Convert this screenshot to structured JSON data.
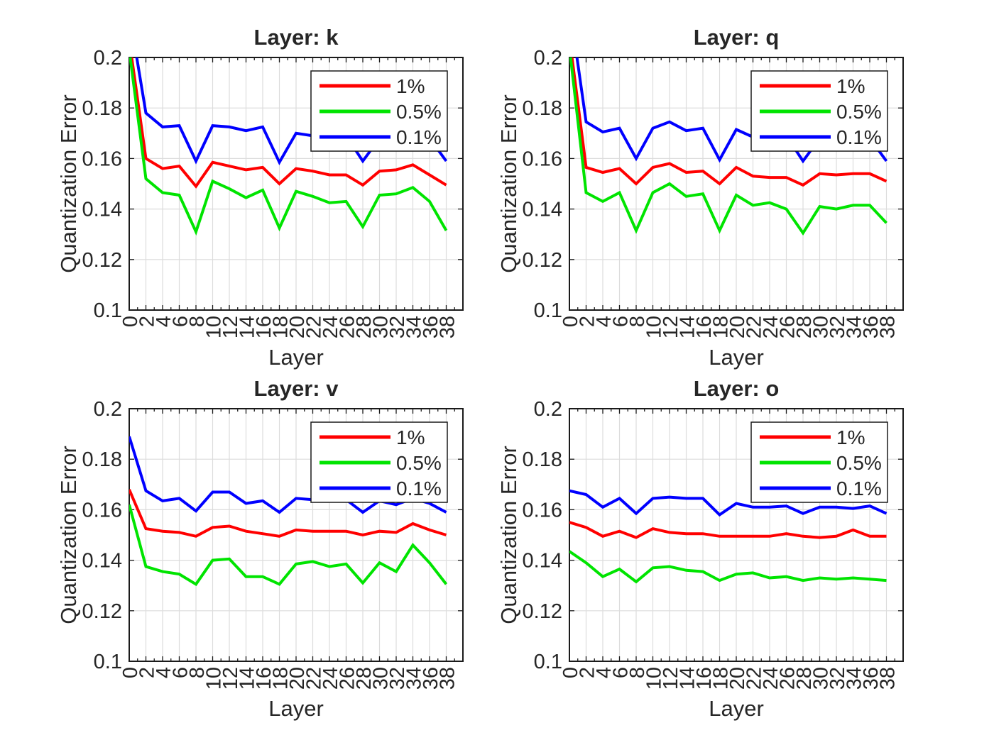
{
  "figure": {
    "background": "#ffffff",
    "text_color": "#262626",
    "axis_color": "#1a1a1a",
    "grid_color": "#dcdcdc",
    "legend": {
      "position": "northeast",
      "labels": [
        "1%",
        "0.5%",
        "0.1%"
      ],
      "colors": [
        "#ff0000",
        "#00e400",
        "#0000ff"
      ]
    }
  },
  "chart_data": [
    {
      "id": "k",
      "type": "line",
      "title": "Layer: k",
      "xlabel": "Layer",
      "ylabel": "Quantization Error",
      "grid": true,
      "legend_position": "northeast",
      "xlim": [
        0,
        40
      ],
      "ylim": [
        0.1,
        0.2
      ],
      "xticks": [
        0,
        2,
        4,
        6,
        8,
        10,
        12,
        14,
        16,
        18,
        20,
        22,
        24,
        26,
        28,
        30,
        32,
        34,
        36,
        38
      ],
      "xtick_labels": [
        "0",
        "2",
        "4",
        "6",
        "8",
        "10",
        "12",
        "14",
        "16",
        "18",
        "20",
        "22",
        "24",
        "26",
        "28",
        "30",
        "32",
        "34",
        "36",
        "38"
      ],
      "yticks": [
        0.1,
        0.12,
        0.14,
        0.16,
        0.18,
        0.2
      ],
      "ytick_labels": [
        "0.1",
        "0.12",
        "0.14",
        "0.16",
        "0.18",
        "0.2"
      ],
      "x": [
        0,
        2,
        4,
        6,
        8,
        10,
        12,
        14,
        16,
        18,
        20,
        22,
        24,
        26,
        28,
        30,
        32,
        34,
        36,
        38
      ],
      "series": [
        {
          "name": "1%",
          "color": "#ff0000",
          "values": [
            0.207,
            0.16,
            0.156,
            0.157,
            0.149,
            0.1585,
            0.157,
            0.1555,
            0.1565,
            0.15,
            0.156,
            0.155,
            0.1535,
            0.1535,
            0.1495,
            0.155,
            0.1555,
            0.1575,
            0.1535,
            0.1495
          ]
        },
        {
          "name": "0.5%",
          "color": "#00e400",
          "values": [
            0.203,
            0.152,
            0.1465,
            0.1455,
            0.131,
            0.151,
            0.148,
            0.1445,
            0.1475,
            0.1325,
            0.147,
            0.145,
            0.1425,
            0.143,
            0.133,
            0.1455,
            0.146,
            0.1485,
            0.143,
            0.1315
          ]
        },
        {
          "name": "0.1%",
          "color": "#0000ff",
          "values": [
            0.218,
            0.178,
            0.1725,
            0.173,
            0.159,
            0.173,
            0.1725,
            0.171,
            0.1725,
            0.1585,
            0.17,
            0.169,
            0.1685,
            0.169,
            0.159,
            0.168,
            0.1695,
            0.17,
            0.168,
            0.159
          ]
        }
      ]
    },
    {
      "id": "q",
      "type": "line",
      "title": "Layer: q",
      "xlabel": "Layer",
      "ylabel": "Quantization Error",
      "grid": true,
      "legend_position": "northeast",
      "xlim": [
        0,
        40
      ],
      "ylim": [
        0.1,
        0.2
      ],
      "xticks": [
        0,
        2,
        4,
        6,
        8,
        10,
        12,
        14,
        16,
        18,
        20,
        22,
        24,
        26,
        28,
        30,
        32,
        34,
        36,
        38
      ],
      "xtick_labels": [
        "0",
        "2",
        "4",
        "6",
        "8",
        "10",
        "12",
        "14",
        "16",
        "18",
        "20",
        "22",
        "24",
        "26",
        "28",
        "30",
        "32",
        "34",
        "36",
        "38"
      ],
      "yticks": [
        0.1,
        0.12,
        0.14,
        0.16,
        0.18,
        0.2
      ],
      "ytick_labels": [
        "0.1",
        "0.12",
        "0.14",
        "0.16",
        "0.18",
        "0.2"
      ],
      "x": [
        0,
        2,
        4,
        6,
        8,
        10,
        12,
        14,
        16,
        18,
        20,
        22,
        24,
        26,
        28,
        30,
        32,
        34,
        36,
        38
      ],
      "series": [
        {
          "name": "1%",
          "color": "#ff0000",
          "values": [
            0.208,
            0.1565,
            0.1545,
            0.156,
            0.15,
            0.1565,
            0.158,
            0.1545,
            0.155,
            0.15,
            0.1565,
            0.153,
            0.1525,
            0.1525,
            0.1495,
            0.154,
            0.1535,
            0.154,
            0.154,
            0.151
          ]
        },
        {
          "name": "0.5%",
          "color": "#00e400",
          "values": [
            0.204,
            0.1465,
            0.143,
            0.1465,
            0.1315,
            0.1465,
            0.15,
            0.145,
            0.146,
            0.1315,
            0.1455,
            0.1415,
            0.1425,
            0.14,
            0.1305,
            0.141,
            0.14,
            0.1415,
            0.1415,
            0.1345
          ]
        },
        {
          "name": "0.1%",
          "color": "#0000ff",
          "values": [
            0.221,
            0.1745,
            0.1705,
            0.172,
            0.16,
            0.172,
            0.1745,
            0.171,
            0.172,
            0.1595,
            0.1715,
            0.1685,
            0.168,
            0.169,
            0.159,
            0.168,
            0.169,
            0.1695,
            0.168,
            0.159
          ]
        }
      ]
    },
    {
      "id": "v",
      "type": "line",
      "title": "Layer: v",
      "xlabel": "Layer",
      "ylabel": "Quantization Error",
      "grid": true,
      "legend_position": "northeast",
      "xlim": [
        0,
        40
      ],
      "ylim": [
        0.1,
        0.2
      ],
      "xticks": [
        0,
        2,
        4,
        6,
        8,
        10,
        12,
        14,
        16,
        18,
        20,
        22,
        24,
        26,
        28,
        30,
        32,
        34,
        36,
        38
      ],
      "xtick_labels": [
        "0",
        "2",
        "4",
        "6",
        "8",
        "10",
        "12",
        "14",
        "16",
        "18",
        "20",
        "22",
        "24",
        "26",
        "28",
        "30",
        "32",
        "34",
        "36",
        "38"
      ],
      "yticks": [
        0.1,
        0.12,
        0.14,
        0.16,
        0.18,
        0.2
      ],
      "ytick_labels": [
        "0.1",
        "0.12",
        "0.14",
        "0.16",
        "0.18",
        "0.2"
      ],
      "x": [
        0,
        2,
        4,
        6,
        8,
        10,
        12,
        14,
        16,
        18,
        20,
        22,
        24,
        26,
        28,
        30,
        32,
        34,
        36,
        38
      ],
      "series": [
        {
          "name": "1%",
          "color": "#ff0000",
          "values": [
            0.168,
            0.1525,
            0.1515,
            0.151,
            0.1495,
            0.153,
            0.1535,
            0.1515,
            0.1505,
            0.1495,
            0.152,
            0.1515,
            0.1515,
            0.1515,
            0.15,
            0.1515,
            0.151,
            0.1545,
            0.152,
            0.15
          ]
        },
        {
          "name": "0.5%",
          "color": "#00e400",
          "values": [
            0.162,
            0.1375,
            0.1355,
            0.1345,
            0.1305,
            0.14,
            0.1405,
            0.1335,
            0.1335,
            0.1305,
            0.1385,
            0.1395,
            0.1375,
            0.1385,
            0.131,
            0.139,
            0.1355,
            0.146,
            0.139,
            0.1305
          ]
        },
        {
          "name": "0.1%",
          "color": "#0000ff",
          "values": [
            0.189,
            0.1675,
            0.1635,
            0.1645,
            0.1595,
            0.167,
            0.167,
            0.1625,
            0.1635,
            0.159,
            0.1645,
            0.164,
            0.1635,
            0.164,
            0.159,
            0.1635,
            0.162,
            0.1645,
            0.1625,
            0.159
          ]
        }
      ]
    },
    {
      "id": "o",
      "type": "line",
      "title": "Layer: o",
      "xlabel": "Layer",
      "ylabel": "Quantization Error",
      "grid": true,
      "legend_position": "northeast",
      "xlim": [
        0,
        40
      ],
      "ylim": [
        0.1,
        0.2
      ],
      "xticks": [
        0,
        2,
        4,
        6,
        8,
        10,
        12,
        14,
        16,
        18,
        20,
        22,
        24,
        26,
        28,
        30,
        32,
        34,
        36,
        38
      ],
      "xtick_labels": [
        "0",
        "2",
        "4",
        "6",
        "8",
        "10",
        "12",
        "14",
        "16",
        "18",
        "20",
        "22",
        "24",
        "26",
        "28",
        "30",
        "32",
        "34",
        "36",
        "38"
      ],
      "yticks": [
        0.1,
        0.12,
        0.14,
        0.16,
        0.18,
        0.2
      ],
      "ytick_labels": [
        "0.1",
        "0.12",
        "0.14",
        "0.16",
        "0.18",
        "0.2"
      ],
      "x": [
        0,
        2,
        4,
        6,
        8,
        10,
        12,
        14,
        16,
        18,
        20,
        22,
        24,
        26,
        28,
        30,
        32,
        34,
        36,
        38
      ],
      "series": [
        {
          "name": "1%",
          "color": "#ff0000",
          "values": [
            0.155,
            0.153,
            0.1495,
            0.1515,
            0.149,
            0.1525,
            0.151,
            0.1505,
            0.1505,
            0.1495,
            0.1495,
            0.1495,
            0.1495,
            0.1505,
            0.1495,
            0.149,
            0.1495,
            0.152,
            0.1495,
            0.1495
          ]
        },
        {
          "name": "0.5%",
          "color": "#00e400",
          "values": [
            0.1435,
            0.139,
            0.1335,
            0.1365,
            0.1315,
            0.137,
            0.1375,
            0.136,
            0.1355,
            0.132,
            0.1345,
            0.135,
            0.133,
            0.1335,
            0.132,
            0.133,
            0.1325,
            0.133,
            0.1325,
            0.132
          ]
        },
        {
          "name": "0.1%",
          "color": "#0000ff",
          "values": [
            0.1675,
            0.166,
            0.161,
            0.1645,
            0.1585,
            0.1645,
            0.165,
            0.1645,
            0.1645,
            0.158,
            0.1625,
            0.161,
            0.161,
            0.1615,
            0.1585,
            0.161,
            0.161,
            0.1605,
            0.1615,
            0.1585
          ]
        }
      ]
    }
  ]
}
